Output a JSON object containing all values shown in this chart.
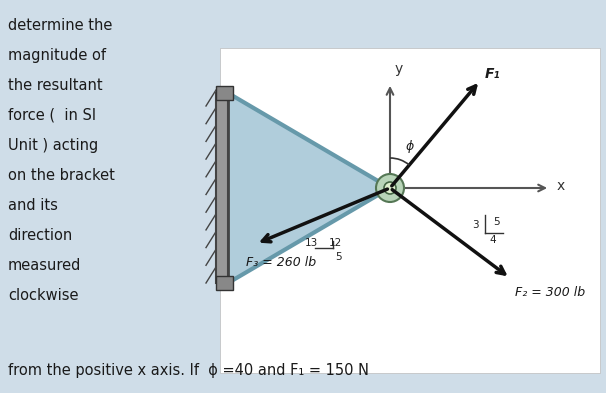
{
  "bg_color": "#cfdde8",
  "panel_bg": "#ffffff",
  "text_color": "#1a1a1a",
  "left_text_lines": [
    "determine the",
    "magnitude of",
    "the resultant",
    "force (  in SI",
    "Unit ) acting",
    "on the bracket",
    "and its",
    "direction",
    "measured",
    "clockwise"
  ],
  "bottom_text": "from the positive x axis. If  ϕ =40 and F₁ = 150 N",
  "axis_color": "#555555",
  "bracket_fill": "#a8c8d8",
  "force_color": "#111111",
  "F1_label": "F₁",
  "F2_label": "F₂ = 300 lb",
  "F3_label": "F₃ = 260 lb",
  "phi_label": "ϕ",
  "y_label": "y",
  "x_label": "x"
}
